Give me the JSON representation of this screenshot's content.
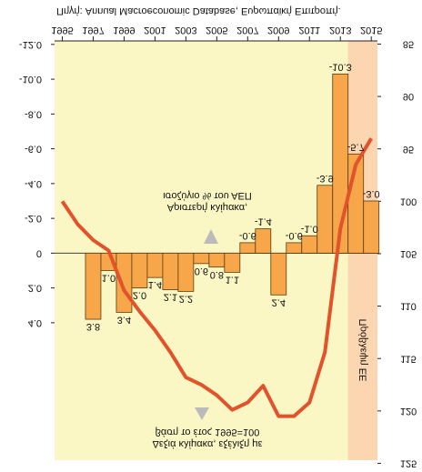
{
  "chart_data": {
    "type": "bar",
    "source": "Πηγή: Annual Macroeconomic Database, Ευρωπαϊκή Επιτροπή.",
    "annotation_left": [
      "Αριστερή κλίμακα,",
      "ισοζύγιο % του ΑΕΠ"
    ],
    "annotation_right": [
      "Δεξιά κλίμακα, εξέλιξη με",
      "βάση το έτος 1995=100"
    ],
    "forecast_label": "Πρόβλεψη ΕΕ",
    "forecast_range": [
      2014,
      2015
    ],
    "bars": {
      "x": [
        1997,
        1998,
        1999,
        2000,
        2001,
        2002,
        2003,
        2004,
        2005,
        2006,
        2007,
        2008,
        2009,
        2010,
        2011,
        2012,
        2013,
        2014,
        2015
      ],
      "values": [
        3.8,
        1.0,
        3.4,
        2.0,
        1.4,
        2.1,
        2.2,
        0.6,
        0.8,
        1.1,
        -0.6,
        -1.4,
        2.4,
        -0.6,
        -1.0,
        -3.9,
        -10.3,
        -5.7,
        -3.0
      ],
      "value_labels": [
        "3.8",
        "1.0",
        "3.4",
        "2.0",
        "1.4",
        "2.1",
        "2.2",
        "0.6",
        "0.8",
        "1.1",
        "-0.6",
        "-1.4",
        "2.4",
        "-0.6",
        "-1.0",
        "-3.9",
        "-10.3",
        "-5.7",
        "-3.0"
      ],
      "color": "#f7a649"
    },
    "line": {
      "x": [
        1995,
        1996,
        1997,
        1998,
        1999,
        2000,
        2001,
        2002,
        2003,
        2004,
        2005,
        2006,
        2007,
        2008,
        2009,
        2010,
        2011,
        2012,
        2013,
        2014,
        2015
      ],
      "values": [
        100,
        102.2,
        103.7,
        104.7,
        108.5,
        110.5,
        112.3,
        114.4,
        116.8,
        117.5,
        118.5,
        119.9,
        119.2,
        117.6,
        120.5,
        120.5,
        119.2,
        114.4,
        102.6,
        96.5,
        94
      ],
      "color": "#e2522b",
      "axis": "y2"
    },
    "xlim": [
      1994.5,
      2015.4
    ],
    "xticks": [
      1995,
      1997,
      1999,
      2001,
      2003,
      2005,
      2007,
      2009,
      2011,
      2013,
      2015
    ],
    "ylim": [
      -12.2,
      11.9
    ],
    "yticks": [
      {
        "value": -12,
        "label": "-12.0"
      },
      {
        "value": -10,
        "label": "-10.0"
      },
      {
        "value": -8,
        "label": "-8.0"
      },
      {
        "value": -6,
        "label": "-6.0"
      },
      {
        "value": -4,
        "label": "-4.0"
      },
      {
        "value": -2,
        "label": "-2.0"
      },
      0,
      {
        "value": 2,
        "label": "2.0"
      },
      {
        "value": 4,
        "label": "4.0"
      }
    ],
    "y2lim": [
      84.7,
      124.7
    ],
    "y2ticks": [
      85,
      90,
      95,
      100,
      105,
      110,
      115,
      120,
      125
    ]
  }
}
